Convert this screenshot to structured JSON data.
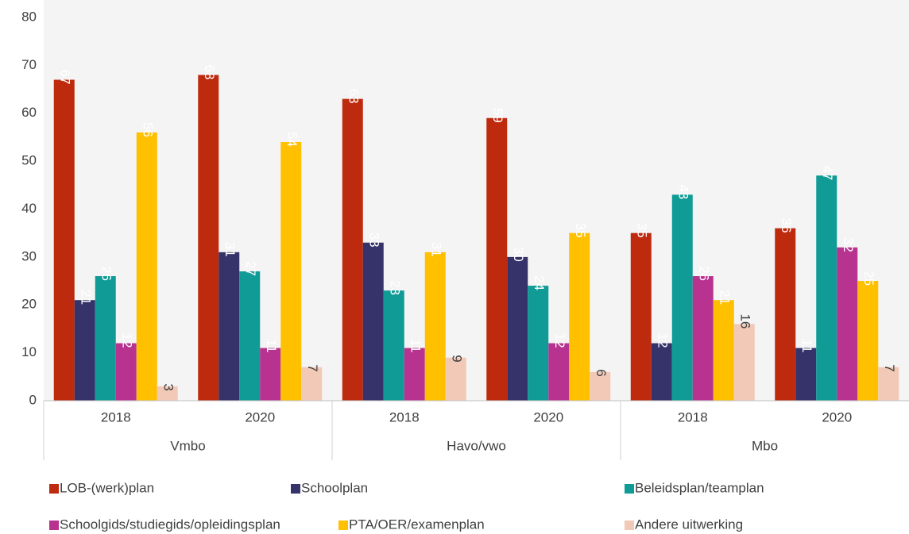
{
  "chart_data": {
    "type": "bar",
    "categories": [
      "2018",
      "2020",
      "2018",
      "2020",
      "2018",
      "2020"
    ],
    "groups": [
      "Vmbo",
      "Havo/vwo",
      "Mbo"
    ],
    "ylim": [
      0,
      80
    ],
    "yticks": [
      0,
      10,
      20,
      30,
      40,
      50,
      60,
      70,
      80
    ],
    "series": [
      {
        "name": "LOB-(werk)plan",
        "color": "#be2a0e",
        "label_color": "#ffffff",
        "values": [
          67,
          68,
          63,
          59,
          35,
          36
        ]
      },
      {
        "name": "Schoolplan",
        "color": "#35336a",
        "label_color": "#ffffff",
        "values": [
          21,
          31,
          33,
          30,
          12,
          11
        ]
      },
      {
        "name": "Beleidsplan/teamplan",
        "color": "#109b96",
        "label_color": "#ffffff",
        "values": [
          26,
          27,
          23,
          24,
          43,
          47
        ]
      },
      {
        "name": "Schoolgids/studiegids/opleidingsplan",
        "color": "#b8338f",
        "label_color": "#ffffff",
        "values": [
          12,
          11,
          11,
          12,
          26,
          32
        ]
      },
      {
        "name": "PTA/OER/examenplan",
        "color": "#ffc000",
        "label_color": "#ffffff",
        "values": [
          56,
          54,
          31,
          35,
          21,
          25
        ]
      },
      {
        "name": "Andere uitwerking",
        "color": "#f2c9b7",
        "label_color": "#404040",
        "values": [
          3,
          7,
          9,
          6,
          16,
          7
        ]
      }
    ]
  }
}
